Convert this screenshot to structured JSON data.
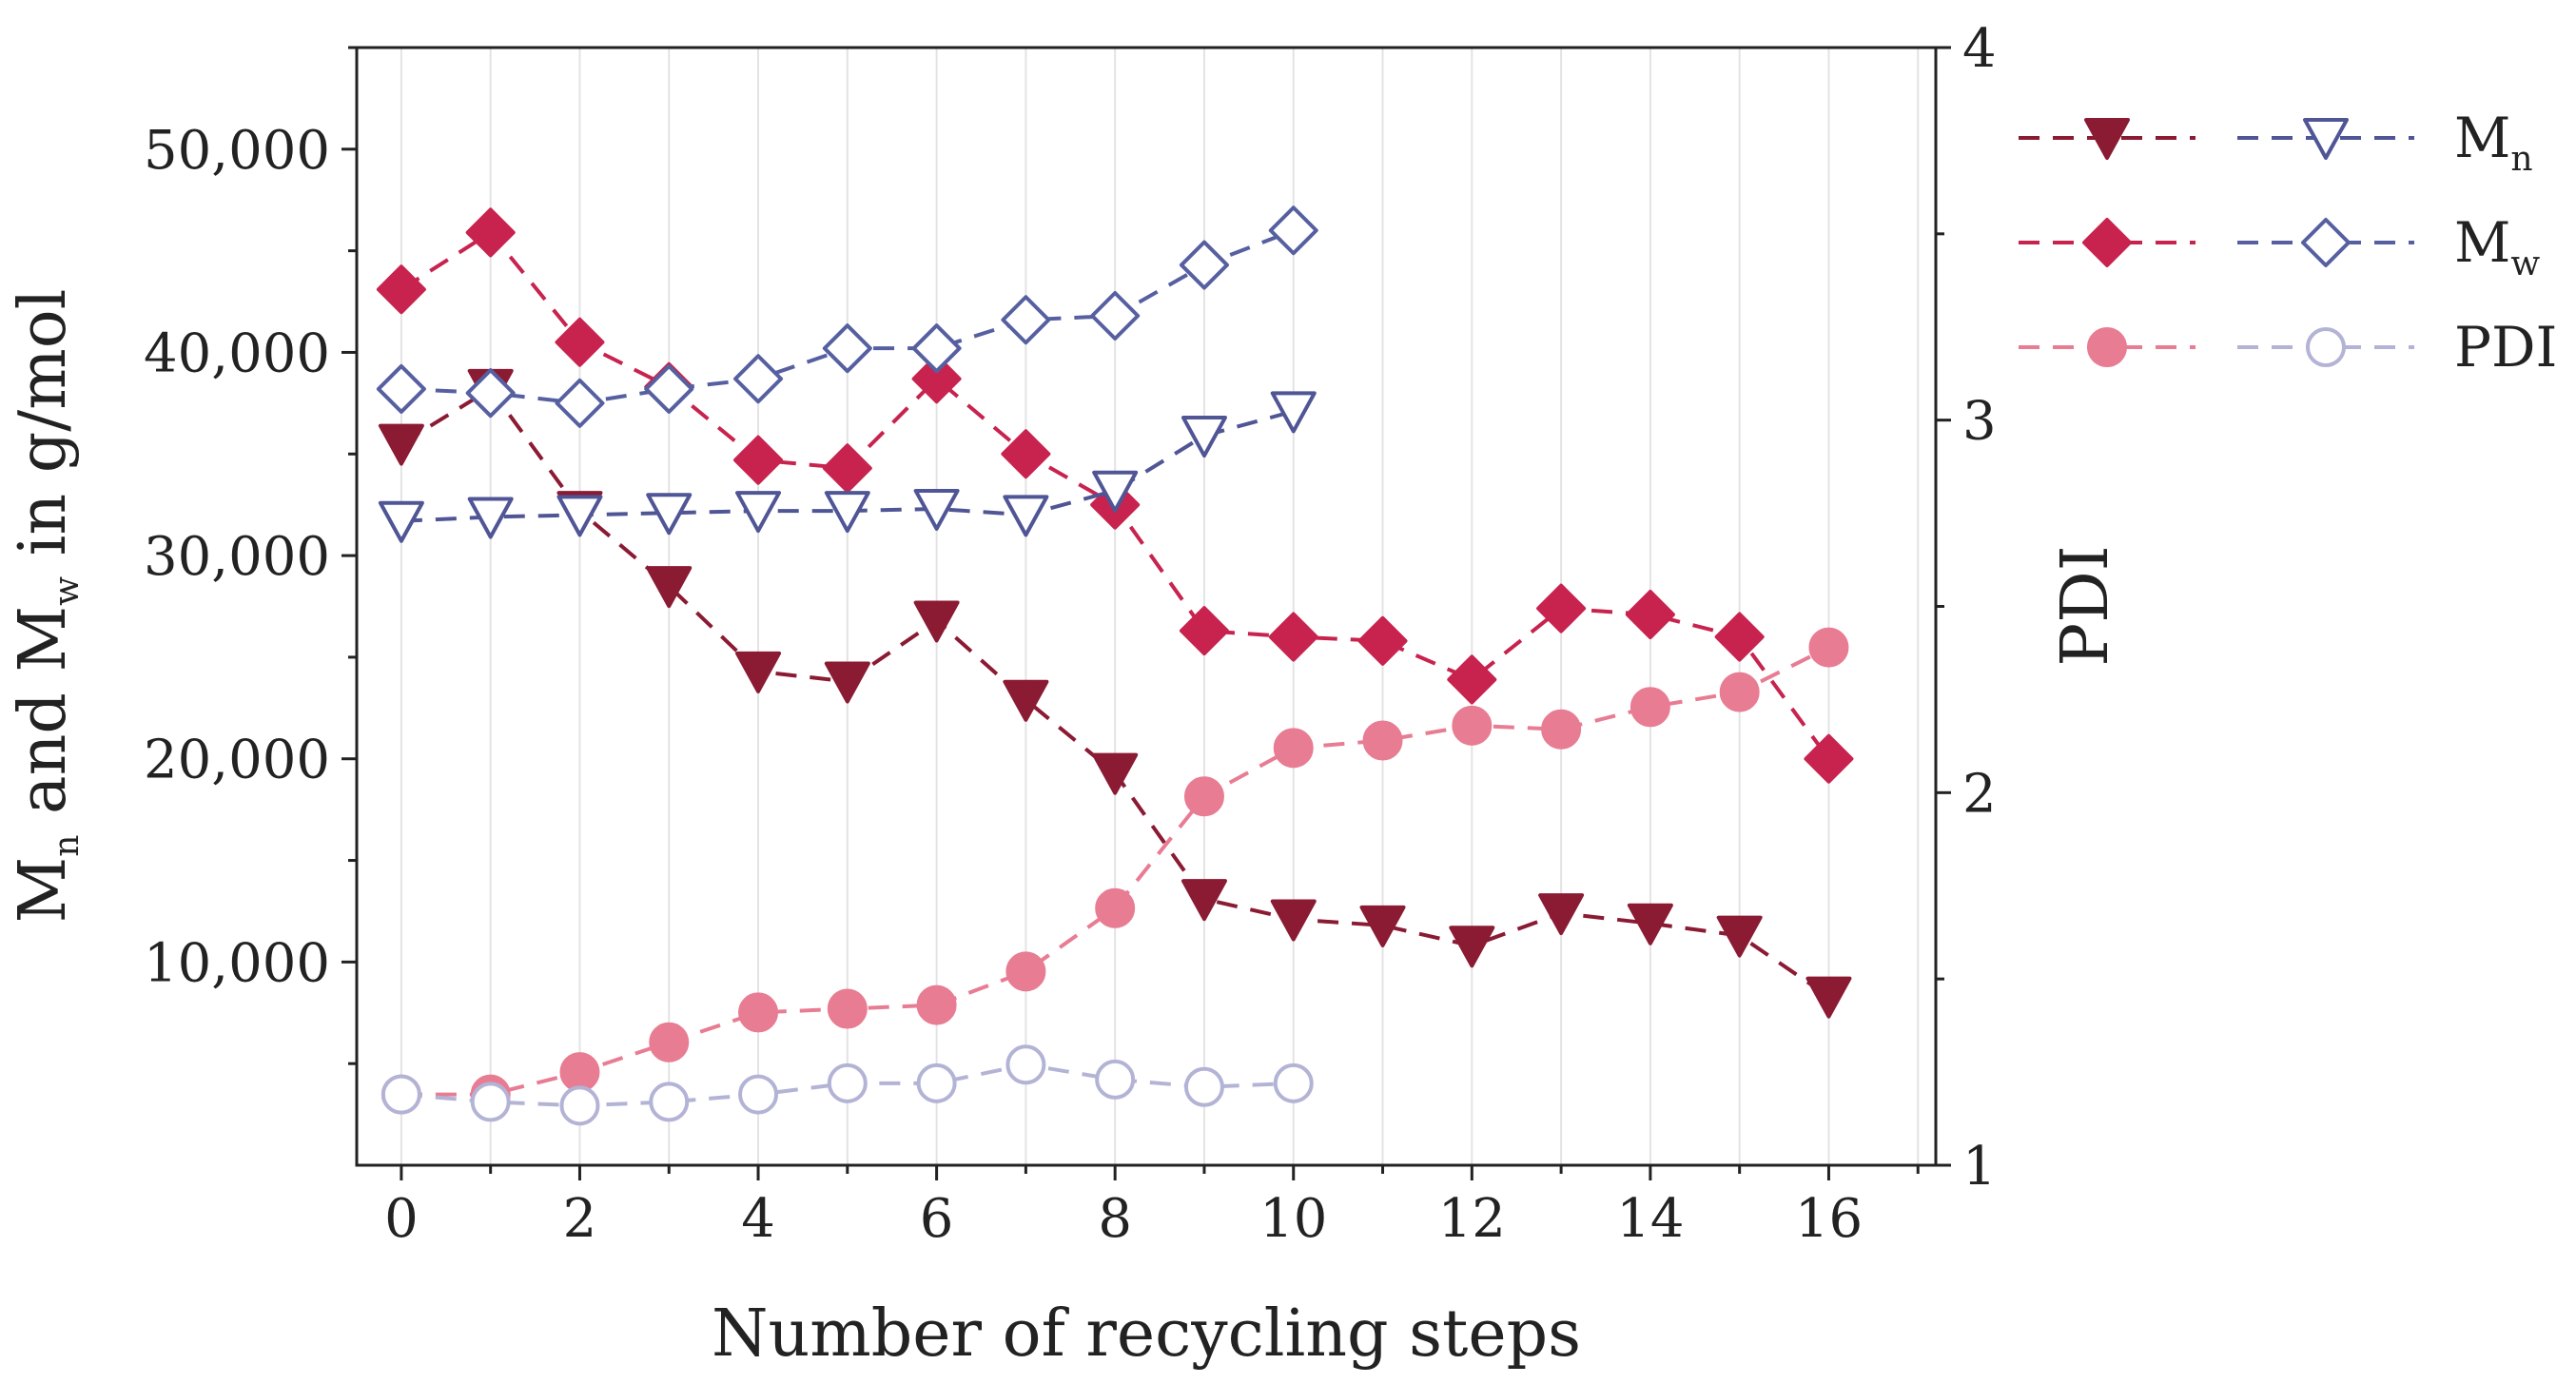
{
  "chart_data": {
    "type": "line",
    "xlabel": "Number of recycling steps",
    "ylabel": {
      "prefix": "M",
      "sub1": "n",
      "middle": " and M",
      "sub2": "w",
      "suffix": " in g/mol"
    },
    "y2label": "PDI",
    "xlim": [
      -0.5,
      17.2
    ],
    "ylim": [
      0,
      55000
    ],
    "y2lim": [
      1,
      4
    ],
    "x_ticks": [
      0,
      2,
      4,
      6,
      8,
      10,
      12,
      14,
      16
    ],
    "x_tick_labels": [
      "0",
      "2",
      "4",
      "6",
      "8",
      "10",
      "12",
      "14",
      "16"
    ],
    "y_ticks": [
      10000,
      20000,
      30000,
      40000,
      50000
    ],
    "y_tick_labels": [
      "10,000",
      "20,000",
      "30,000",
      "40,000",
      "50,000"
    ],
    "y2_ticks": [
      1,
      2,
      3,
      4
    ],
    "y2_tick_labels": [
      "1",
      "2",
      "3",
      "4"
    ],
    "grid": "vertical-minor",
    "colors": {
      "mn_filled": "#8b1a33",
      "mw_filled": "#c8234e",
      "pdi_filled": "#e87c92",
      "mn_open": "#4f5595",
      "mw_open": "#5660a0",
      "pdi_open": "#b3b3d6"
    },
    "series": [
      {
        "name": "Mn (filled)",
        "axis": "left",
        "marker": "triangle-down",
        "filled": true,
        "color_key": "mn_filled",
        "x": [
          0,
          1,
          2,
          3,
          4,
          5,
          6,
          7,
          8,
          9,
          10,
          11,
          12,
          13,
          14,
          15,
          16
        ],
        "values": [
          35500,
          38200,
          32200,
          28500,
          24300,
          23800,
          26800,
          22900,
          19300,
          13100,
          12100,
          11800,
          10800,
          12400,
          11900,
          11300,
          8300
        ]
      },
      {
        "name": "Mw (filled)",
        "axis": "left",
        "marker": "diamond",
        "filled": true,
        "color_key": "mw_filled",
        "x": [
          0,
          1,
          2,
          3,
          4,
          5,
          6,
          7,
          8,
          9,
          10,
          11,
          12,
          13,
          14,
          15,
          16
        ],
        "values": [
          43100,
          45900,
          40500,
          38300,
          34700,
          34300,
          38700,
          35000,
          32500,
          26300,
          26000,
          25800,
          23900,
          27400,
          27100,
          26000,
          20000
        ]
      },
      {
        "name": "PDI (filled)",
        "axis": "right",
        "marker": "circle",
        "filled": true,
        "color_key": "pdi_filled",
        "x": [
          0,
          1,
          2,
          3,
          4,
          5,
          6,
          7,
          8,
          9,
          10,
          11,
          12,
          13,
          14,
          15,
          16
        ],
        "values": [
          1.19,
          1.19,
          1.25,
          1.33,
          1.41,
          1.42,
          1.43,
          1.52,
          1.69,
          1.99,
          2.12,
          2.14,
          2.18,
          2.17,
          2.23,
          2.27,
          2.39
        ]
      },
      {
        "name": "Mn (open)",
        "axis": "left",
        "marker": "triangle-down",
        "filled": false,
        "color_key": "mn_open",
        "x": [
          0,
          1,
          2,
          3,
          4,
          5,
          6,
          7,
          8,
          9,
          10
        ],
        "values": [
          31700,
          31900,
          32000,
          32100,
          32200,
          32200,
          32300,
          32000,
          33200,
          35900,
          37100
        ]
      },
      {
        "name": "Mw (open)",
        "axis": "left",
        "marker": "diamond",
        "filled": false,
        "color_key": "mw_open",
        "x": [
          0,
          1,
          2,
          3,
          4,
          5,
          6,
          7,
          8,
          9,
          10
        ],
        "values": [
          38200,
          38000,
          37500,
          38200,
          38700,
          40200,
          40200,
          41600,
          41800,
          44300,
          46000
        ]
      },
      {
        "name": "PDI (open)",
        "axis": "right",
        "marker": "circle",
        "filled": false,
        "color_key": "pdi_open",
        "x": [
          0,
          1,
          2,
          3,
          4,
          5,
          6,
          7,
          8,
          9,
          10
        ],
        "values": [
          1.19,
          1.17,
          1.16,
          1.17,
          1.19,
          1.22,
          1.22,
          1.27,
          1.23,
          1.21,
          1.22
        ]
      }
    ],
    "legend": {
      "placement": "right",
      "entries": [
        {
          "label": "M",
          "sub": "n",
          "marker": "triangle-down"
        },
        {
          "label": "M",
          "sub": "w",
          "marker": "diamond"
        },
        {
          "label": "PDI",
          "sub": "",
          "marker": "circle"
        }
      ]
    }
  }
}
